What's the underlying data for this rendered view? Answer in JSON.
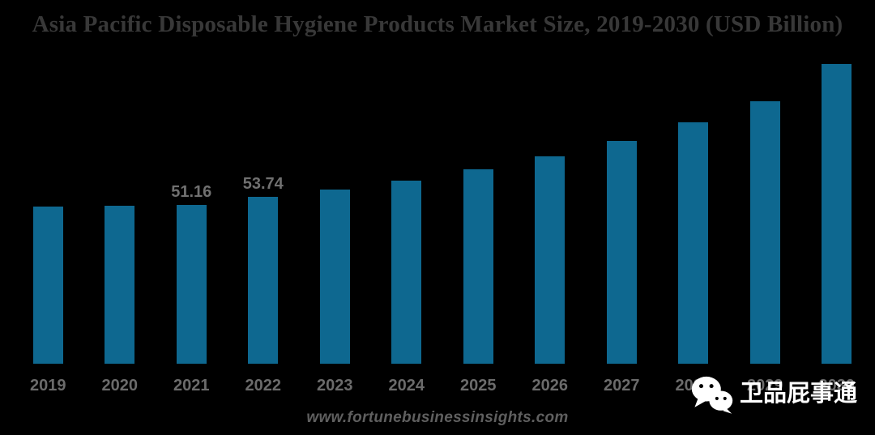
{
  "page": {
    "background_color": "#000000"
  },
  "chart_data": {
    "type": "bar",
    "title": "Asia Pacific Disposable Hygiene Products Market Size, 2019-2030 (USD Billion)",
    "xlabel": "",
    "ylabel": "",
    "categories": [
      "2019",
      "2020",
      "2021",
      "2022",
      "2023",
      "2024",
      "2025",
      "2026",
      "2027",
      "2028",
      "2029",
      "2030"
    ],
    "values": [
      50.6,
      50.9,
      51.16,
      53.74,
      56.1,
      59.0,
      62.6,
      66.8,
      71.8,
      77.8,
      84.6,
      96.6
    ],
    "data_labels": [
      "",
      "",
      "51.16",
      "53.74",
      "",
      "",
      "",
      "",
      "",
      "",
      "",
      ""
    ],
    "ylim": [
      0,
      102
    ],
    "grid": false,
    "legend": false,
    "axes_visible": false,
    "bar_color": "#0e6890",
    "data_label_color": "#707070",
    "tick_label_color": "#6b6b6b",
    "title_color": "#383838"
  },
  "footer": {
    "source_url": "www.fortunebusinessinsights.com"
  },
  "watermark": {
    "icon": "wechat-icon",
    "text": "卫品屁事通",
    "text_color": "#ffffff"
  }
}
